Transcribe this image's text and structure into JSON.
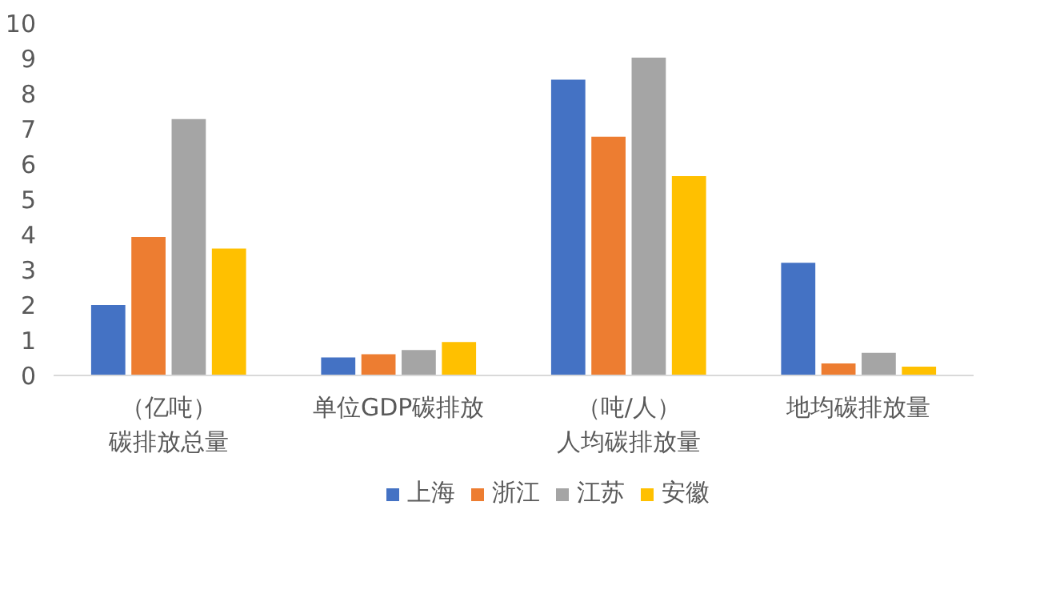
{
  "chart_data": {
    "type": "bar",
    "categories": [
      "（亿吨）碳排放总量",
      "单位GDP碳排放",
      "（吨/人）人均碳排放量",
      "地均碳排放量"
    ],
    "series": [
      {
        "name": "上海",
        "color": "#4472c4",
        "values": [
          2.0,
          0.51,
          8.4,
          3.2
        ]
      },
      {
        "name": "浙江",
        "color": "#ed7d31",
        "values": [
          3.93,
          0.6,
          6.78,
          0.34
        ]
      },
      {
        "name": "江苏",
        "color": "#a5a5a5",
        "values": [
          7.28,
          0.72,
          9.02,
          0.64
        ]
      },
      {
        "name": "安徽",
        "color": "#ffc000",
        "values": [
          3.6,
          0.95,
          5.66,
          0.25
        ]
      }
    ],
    "ylim": [
      0,
      10
    ],
    "yticks": [
      0,
      1,
      2,
      3,
      4,
      5,
      6,
      7,
      8,
      9,
      10
    ],
    "grid": false,
    "legend": "bottom"
  }
}
